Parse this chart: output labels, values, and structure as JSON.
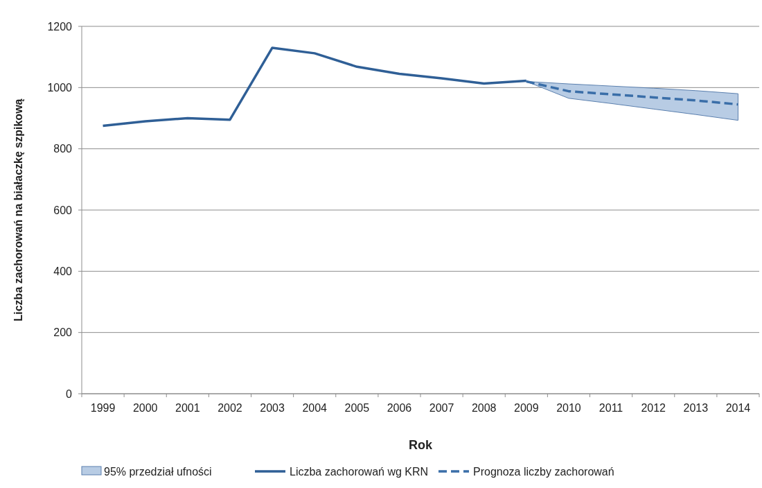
{
  "chart_data": {
    "type": "line",
    "xlabel": "Rok",
    "ylabel": "Liczba zachorowań na białaczkę szpikową",
    "categories": [
      "1999",
      "2000",
      "2001",
      "2002",
      "2003",
      "2004",
      "2005",
      "2006",
      "2007",
      "2008",
      "2009",
      "2010",
      "2011",
      "2012",
      "2013",
      "2014"
    ],
    "ylim": [
      0,
      1200
    ],
    "yticks": [
      0,
      200,
      400,
      600,
      800,
      1000,
      1200
    ],
    "grid": "y",
    "legend": "bottom",
    "annotations": [
      "95% przedział ufności"
    ],
    "series": [
      {
        "name": "Liczba zachorowań wg KRN",
        "color": "#2f5f96",
        "line_style": "solid",
        "values": [
          875,
          890,
          900,
          895,
          1130,
          1112,
          1068,
          1045,
          1030,
          1013,
          1022,
          null,
          null,
          null,
          null,
          null
        ]
      },
      {
        "name": "Prognoza liczby zachorowań",
        "color": "#3a6ea8",
        "line_style": "dashed",
        "values": [
          null,
          null,
          null,
          null,
          null,
          null,
          null,
          null,
          null,
          null,
          1020,
          988,
          978,
          968,
          958,
          945
        ],
        "lower": [
          null,
          null,
          null,
          null,
          null,
          null,
          null,
          null,
          null,
          null,
          1020,
          965,
          948,
          930,
          912,
          893
        ],
        "upper": [
          null,
          null,
          null,
          null,
          null,
          null,
          null,
          null,
          null,
          null,
          1020,
          1012,
          1005,
          998,
          990,
          980
        ]
      }
    ]
  }
}
